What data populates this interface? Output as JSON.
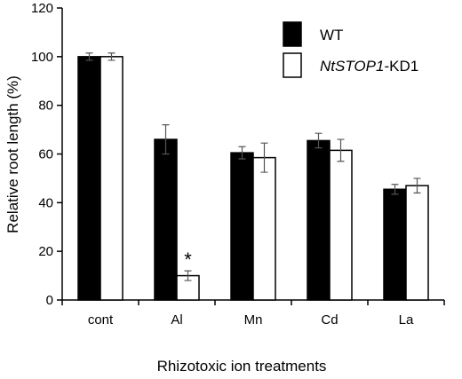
{
  "chart_data": {
    "type": "bar",
    "title": "",
    "xlabel": "Rhizotoxic ion treatments",
    "ylabel": "Relative root length (%)",
    "ylim": [
      0,
      120
    ],
    "yticks": [
      0,
      20,
      40,
      60,
      80,
      100,
      120
    ],
    "categories": [
      "cont",
      "Al",
      "Mn",
      "Cd",
      "La"
    ],
    "series": [
      {
        "name": "WT",
        "fill": "#000000",
        "values": [
          100,
          66,
          60.5,
          65.5,
          45.5
        ],
        "errors": [
          1.5,
          6,
          2.5,
          3,
          2
        ]
      },
      {
        "name_parts": [
          "NtSTOP1",
          "-KD1"
        ],
        "fill": "#ffffff",
        "values": [
          100,
          10,
          58.5,
          61.5,
          47
        ],
        "errors": [
          1.5,
          2,
          6,
          4.5,
          3
        ]
      }
    ],
    "annotations": [
      {
        "text": "*",
        "category": "Al",
        "series": 1
      }
    ],
    "legend_position": "top-right",
    "grid": false
  }
}
